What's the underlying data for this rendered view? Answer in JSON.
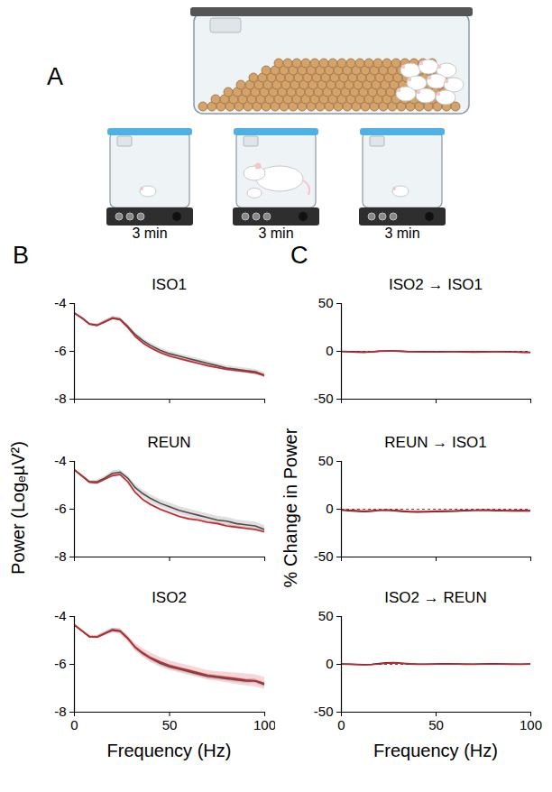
{
  "figure": {
    "panel_a": {
      "letter": "A",
      "steps": [
        "3 min",
        "3 min",
        "3 min"
      ]
    },
    "columns": [
      {
        "letter": "B",
        "y_label": "Power (LogₑµV²)",
        "x_label": "Frequency (Hz)"
      },
      {
        "letter": "C",
        "y_label": "% Change in Power",
        "x_label": "Frequency (Hz)"
      }
    ]
  },
  "chart_data": [
    {
      "type": "line",
      "title": "ISO1",
      "tick_labels": "y",
      "x": [
        0,
        4,
        8,
        12,
        16,
        20,
        24,
        28,
        32,
        36,
        40,
        45,
        50,
        55,
        60,
        65,
        70,
        75,
        80,
        85,
        90,
        95,
        100
      ],
      "xlim": [
        0,
        100
      ],
      "xticks": [
        0,
        50,
        100
      ],
      "ylim": [
        -8,
        -4
      ],
      "yticks": [
        -8,
        -6,
        -4
      ],
      "series": [
        {
          "color": "#4d4d4d",
          "values": [
            -4.4,
            -4.6,
            -4.85,
            -4.9,
            -4.75,
            -4.6,
            -4.65,
            -4.95,
            -5.3,
            -5.55,
            -5.75,
            -5.95,
            -6.1,
            -6.2,
            -6.3,
            -6.4,
            -6.5,
            -6.6,
            -6.7,
            -6.75,
            -6.8,
            -6.85,
            -7.0
          ],
          "errors": [
            0.05,
            0.05,
            0.05,
            0.05,
            0.06,
            0.07,
            0.08,
            0.08,
            0.09,
            0.1,
            0.1,
            0.1,
            0.1,
            0.1,
            0.1,
            0.1,
            0.1,
            0.1,
            0.1,
            0.1,
            0.1,
            0.1,
            0.1
          ]
        },
        {
          "color": "#c1272d",
          "values": [
            -4.4,
            -4.62,
            -4.87,
            -4.92,
            -4.77,
            -4.62,
            -4.68,
            -5.0,
            -5.38,
            -5.65,
            -5.85,
            -6.05,
            -6.2,
            -6.3,
            -6.4,
            -6.5,
            -6.6,
            -6.68,
            -6.75,
            -6.8,
            -6.85,
            -6.9,
            -7.02
          ],
          "errors": [
            0.04,
            0.04,
            0.04,
            0.04,
            0.05,
            0.05,
            0.06,
            0.06,
            0.06,
            0.06,
            0.06,
            0.06,
            0.06,
            0.06,
            0.06,
            0.06,
            0.06,
            0.06,
            0.06,
            0.06,
            0.06,
            0.06,
            0.06
          ]
        }
      ]
    },
    {
      "type": "line",
      "title": "REUN",
      "tick_labels": "y",
      "x": [
        0,
        4,
        8,
        12,
        16,
        20,
        24,
        28,
        32,
        36,
        40,
        45,
        50,
        55,
        60,
        65,
        70,
        75,
        80,
        85,
        90,
        95,
        100
      ],
      "xlim": [
        0,
        100
      ],
      "xticks": [
        0,
        50,
        100
      ],
      "ylim": [
        -8,
        -4
      ],
      "yticks": [
        -8,
        -6,
        -4
      ],
      "series": [
        {
          "color": "#4d4d4d",
          "values": [
            -4.35,
            -4.6,
            -4.85,
            -4.85,
            -4.7,
            -4.5,
            -4.45,
            -4.7,
            -5.1,
            -5.35,
            -5.55,
            -5.75,
            -5.9,
            -6.05,
            -6.15,
            -6.25,
            -6.35,
            -6.45,
            -6.5,
            -6.6,
            -6.65,
            -6.7,
            -6.85
          ],
          "errors": [
            0.05,
            0.05,
            0.06,
            0.07,
            0.08,
            0.1,
            0.1,
            0.12,
            0.14,
            0.15,
            0.15,
            0.16,
            0.16,
            0.16,
            0.16,
            0.16,
            0.16,
            0.16,
            0.16,
            0.16,
            0.16,
            0.16,
            0.16
          ]
        },
        {
          "color": "#c1272d",
          "values": [
            -4.35,
            -4.62,
            -4.88,
            -4.9,
            -4.75,
            -4.6,
            -4.55,
            -4.85,
            -5.3,
            -5.6,
            -5.8,
            -6.0,
            -6.15,
            -6.3,
            -6.4,
            -6.45,
            -6.55,
            -6.6,
            -6.7,
            -6.75,
            -6.8,
            -6.85,
            -6.95
          ],
          "errors": [
            0.04,
            0.04,
            0.04,
            0.04,
            0.05,
            0.05,
            0.06,
            0.06,
            0.06,
            0.06,
            0.06,
            0.06,
            0.06,
            0.06,
            0.06,
            0.06,
            0.06,
            0.06,
            0.06,
            0.06,
            0.06,
            0.06,
            0.06
          ]
        }
      ]
    },
    {
      "type": "line",
      "title": "ISO2",
      "x": [
        0,
        4,
        8,
        12,
        16,
        20,
        24,
        28,
        32,
        36,
        40,
        45,
        50,
        55,
        60,
        65,
        70,
        75,
        80,
        85,
        90,
        95,
        100
      ],
      "xlim": [
        0,
        100
      ],
      "xticks": [
        0,
        50,
        100
      ],
      "ylim": [
        -8,
        -4
      ],
      "yticks": [
        -8,
        -6,
        -4
      ],
      "series": [
        {
          "color": "#4d4d4d",
          "values": [
            -4.35,
            -4.6,
            -4.85,
            -4.85,
            -4.7,
            -4.55,
            -4.6,
            -4.9,
            -5.3,
            -5.55,
            -5.75,
            -5.95,
            -6.1,
            -6.2,
            -6.3,
            -6.4,
            -6.5,
            -6.55,
            -6.6,
            -6.65,
            -6.7,
            -6.7,
            -6.85
          ],
          "errors": [
            0.05,
            0.05,
            0.05,
            0.05,
            0.06,
            0.07,
            0.08,
            0.08,
            0.09,
            0.1,
            0.1,
            0.1,
            0.1,
            0.1,
            0.1,
            0.1,
            0.1,
            0.1,
            0.1,
            0.1,
            0.1,
            0.1,
            0.1
          ]
        },
        {
          "color": "#c1272d",
          "values": [
            -4.35,
            -4.6,
            -4.84,
            -4.86,
            -4.72,
            -4.58,
            -4.62,
            -4.92,
            -5.28,
            -5.52,
            -5.72,
            -5.9,
            -6.05,
            -6.15,
            -6.25,
            -6.35,
            -6.45,
            -6.5,
            -6.55,
            -6.6,
            -6.65,
            -6.68,
            -6.8
          ],
          "errors": [
            0.06,
            0.06,
            0.07,
            0.08,
            0.09,
            0.1,
            0.12,
            0.14,
            0.16,
            0.18,
            0.2,
            0.2,
            0.2,
            0.2,
            0.2,
            0.2,
            0.2,
            0.2,
            0.22,
            0.24,
            0.25,
            0.25,
            0.25
          ]
        }
      ]
    },
    {
      "type": "line",
      "title": "ISO2 → ISO1",
      "tick_labels": "y",
      "reference_line": 0,
      "x": [
        0,
        4,
        8,
        12,
        16,
        20,
        24,
        28,
        32,
        36,
        40,
        45,
        50,
        55,
        60,
        65,
        70,
        75,
        80,
        85,
        90,
        95,
        100
      ],
      "xlim": [
        0,
        100
      ],
      "xticks": [
        0,
        50,
        100
      ],
      "ylim": [
        -50,
        50
      ],
      "yticks": [
        -50,
        0,
        50
      ],
      "series": [
        {
          "color": "#222222",
          "values": [
            0,
            -0.3,
            -0.6,
            -0.8,
            -0.4,
            0.3,
            0.5,
            0.4,
            0.1,
            -0.2,
            -0.3,
            -0.4,
            -0.5,
            -0.3,
            -0.2,
            -0.4,
            -0.6,
            -0.4,
            -0.2,
            -0.3,
            -0.5,
            -0.8,
            -1.0
          ]
        },
        {
          "color": "#c1272d",
          "values": [
            -0.2,
            -0.5,
            -0.8,
            -1.0,
            -0.6,
            0.1,
            0.3,
            0.2,
            0.0,
            -0.4,
            -0.5,
            -0.6,
            -0.7,
            -0.5,
            -0.4,
            -0.6,
            -0.8,
            -0.6,
            -0.4,
            -0.5,
            -0.7,
            -1.0,
            -1.2
          ]
        }
      ]
    },
    {
      "type": "line",
      "title": "REUN → ISO1",
      "tick_labels": "y",
      "reference_line": 0,
      "x": [
        0,
        4,
        8,
        12,
        16,
        20,
        24,
        28,
        32,
        36,
        40,
        45,
        50,
        55,
        60,
        65,
        70,
        75,
        80,
        85,
        90,
        95,
        100
      ],
      "xlim": [
        0,
        100
      ],
      "xticks": [
        0,
        50,
        100
      ],
      "ylim": [
        -50,
        50
      ],
      "yticks": [
        -50,
        0,
        50
      ],
      "series": [
        {
          "color": "#222222",
          "values": [
            -1.0,
            -1.5,
            -2.0,
            -2.5,
            -2.0,
            -1.2,
            -1.0,
            -1.5,
            -2.2,
            -2.8,
            -3.0,
            -2.8,
            -2.5,
            -2.2,
            -2.0,
            -1.5,
            -1.2,
            -1.0,
            -1.3,
            -1.6,
            -1.8,
            -1.5,
            -1.8
          ]
        },
        {
          "color": "#c1272d",
          "values": [
            -0.5,
            -1.0,
            -1.5,
            -2.0,
            -1.5,
            -1.0,
            -0.8,
            -1.2,
            -1.8,
            -2.3,
            -2.5,
            -2.3,
            -2.0,
            -1.8,
            -1.6,
            -1.2,
            -1.0,
            -0.8,
            -1.0,
            -1.3,
            -1.5,
            -1.2,
            -1.5
          ]
        }
      ]
    },
    {
      "type": "line",
      "title": "ISO2 → REUN",
      "reference_line": 0,
      "x": [
        0,
        4,
        8,
        12,
        16,
        20,
        24,
        28,
        32,
        36,
        40,
        45,
        50,
        55,
        60,
        65,
        70,
        75,
        80,
        85,
        90,
        95,
        100
      ],
      "xlim": [
        0,
        100
      ],
      "xticks": [
        0,
        50,
        100
      ],
      "ylim": [
        -50,
        50
      ],
      "yticks": [
        -50,
        0,
        50
      ],
      "series": [
        {
          "color": "#222222",
          "values": [
            0.5,
            0.3,
            0,
            -0.3,
            0,
            0.8,
            1.5,
            1.8,
            1.2,
            0.6,
            0.3,
            0.2,
            0.4,
            0.6,
            0.5,
            0.3,
            0.2,
            0.4,
            0.6,
            0.5,
            0.3,
            0.2,
            0.4
          ]
        },
        {
          "color": "#c1272d",
          "values": [
            0.3,
            0.1,
            -0.2,
            -0.5,
            -0.2,
            0.5,
            1.2,
            1.5,
            1.0,
            0.4,
            0.1,
            0,
            0.2,
            0.4,
            0.3,
            0.1,
            0,
            0.2,
            0.4,
            0.3,
            0.1,
            0,
            0.2
          ]
        }
      ]
    }
  ]
}
